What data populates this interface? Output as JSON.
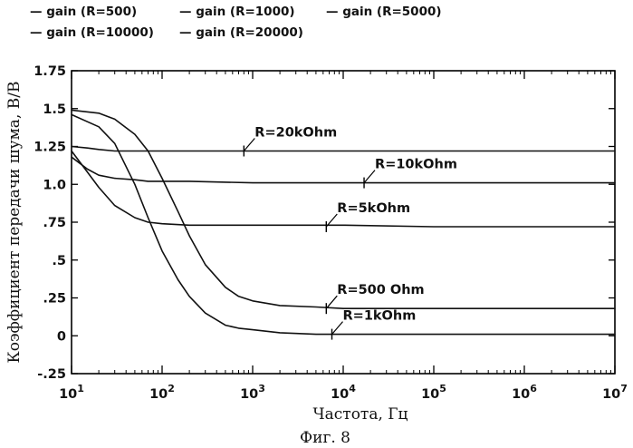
{
  "figure": {
    "caption": "Фиг. 8"
  },
  "chart_data": {
    "type": "line",
    "xlabel": "Частота, Гц",
    "ylabel": "Коэффициент передачи шума, В/В",
    "x_scale": "log",
    "xlim": [
      10,
      10000000
    ],
    "ylim": [
      -0.25,
      1.75
    ],
    "x_ticks": [
      10,
      100,
      1000,
      10000,
      100000,
      1000000,
      10000000
    ],
    "x_tick_labels": [
      {
        "base": "10",
        "exp": "1"
      },
      {
        "base": "10",
        "exp": "2"
      },
      {
        "base": "10",
        "exp": "3"
      },
      {
        "base": "10",
        "exp": "4"
      },
      {
        "base": "10",
        "exp": "5"
      },
      {
        "base": "10",
        "exp": "6"
      },
      {
        "base": "10",
        "exp": "7"
      }
    ],
    "y_ticks": [
      -0.25,
      0,
      0.25,
      0.5,
      0.75,
      1.0,
      1.25,
      1.5,
      1.75
    ],
    "y_tick_labels": [
      "-.25",
      "0",
      ".25",
      ".5",
      ".75",
      "1.0",
      "1.25",
      "1.5",
      "1.75"
    ],
    "grid": false,
    "legend_position": "top",
    "series": [
      {
        "name": "gain (R=500)",
        "legend": "— gain (R=500)",
        "x": [
          10,
          20,
          30,
          50,
          70,
          100,
          150,
          200,
          300,
          500,
          700,
          1000,
          2000,
          5000,
          10000,
          100000,
          1000000,
          10000000
        ],
        "values": [
          1.49,
          1.47,
          1.43,
          1.33,
          1.22,
          1.04,
          0.82,
          0.66,
          0.47,
          0.32,
          0.26,
          0.23,
          0.2,
          0.19,
          0.18,
          0.18,
          0.18,
          0.18
        ]
      },
      {
        "name": "gain (R=1000)",
        "legend": "— gain (R=1000)",
        "x": [
          10,
          20,
          30,
          50,
          70,
          100,
          150,
          200,
          300,
          500,
          700,
          1000,
          2000,
          5000,
          10000,
          100000,
          1000000,
          10000000
        ],
        "values": [
          1.46,
          1.38,
          1.27,
          1.0,
          0.78,
          0.56,
          0.37,
          0.26,
          0.15,
          0.07,
          0.05,
          0.04,
          0.02,
          0.01,
          0.01,
          0.01,
          0.01,
          0.01
        ]
      },
      {
        "name": "gain (R=5000)",
        "legend": "— gain (R=5000)",
        "x": [
          10,
          15,
          20,
          30,
          50,
          70,
          100,
          200,
          500,
          1000,
          10000,
          100000,
          1000000,
          10000000
        ],
        "values": [
          1.22,
          1.08,
          0.98,
          0.86,
          0.78,
          0.75,
          0.74,
          0.73,
          0.73,
          0.73,
          0.73,
          0.72,
          0.72,
          0.72
        ]
      },
      {
        "name": "gain (R=10000)",
        "legend": "— gain (R=10000)",
        "x": [
          10,
          15,
          20,
          30,
          50,
          70,
          100,
          200,
          1000,
          10000,
          10000000
        ],
        "values": [
          1.18,
          1.1,
          1.06,
          1.04,
          1.03,
          1.02,
          1.02,
          1.02,
          1.01,
          1.01,
          1.01
        ]
      },
      {
        "name": "gain (R=20000)",
        "legend": "— gain (R=20000)",
        "x": [
          10,
          15,
          20,
          30,
          50,
          100,
          1000,
          10000,
          10000000
        ],
        "values": [
          1.25,
          1.24,
          1.23,
          1.22,
          1.22,
          1.22,
          1.22,
          1.22,
          1.22
        ]
      }
    ],
    "annotations": [
      {
        "text": "R=20kOhm",
        "x": 800,
        "y": 1.22,
        "series": "gain (R=20000)"
      },
      {
        "text": "R=10kOhm",
        "x": 17000,
        "y": 1.01,
        "series": "gain (R=10000)"
      },
      {
        "text": "R=5kOhm",
        "x": 6500,
        "y": 0.72,
        "series": "gain (R=5000)"
      },
      {
        "text": "R=500 Ohm",
        "x": 6500,
        "y": 0.18,
        "series": "gain (R=500)"
      },
      {
        "text": "R=1kOhm",
        "x": 7500,
        "y": 0.01,
        "series": "gain (R=1000)"
      }
    ]
  }
}
